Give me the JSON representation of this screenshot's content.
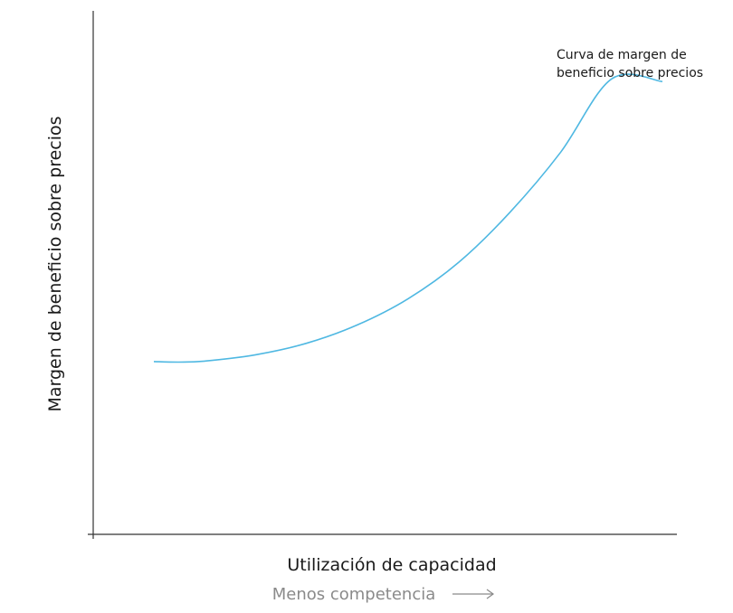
{
  "chart_data": {
    "type": "line",
    "title": "",
    "xlabel": "Utilización de capacidad",
    "ylabel": "Margen de beneficio sobre precios",
    "x_annotation": "Menos competencia",
    "grid": false,
    "ticks": false,
    "xlim": [
      0,
      100
    ],
    "ylim": [
      0,
      100
    ],
    "series": [
      {
        "name": "Curva de margen de beneficio sobre precios",
        "label_lines": [
          "Curva de margen de",
          "beneficio sobre precios"
        ],
        "color": "#4fb8e2",
        "x": [
          0,
          5,
          10,
          20,
          30,
          40,
          50,
          60,
          70,
          80,
          90,
          100
        ],
        "y": [
          33,
          32.9,
          33.1,
          34.3,
          36.5,
          40,
          45,
          52,
          61.5,
          73,
          87,
          86.5
        ]
      }
    ]
  }
}
